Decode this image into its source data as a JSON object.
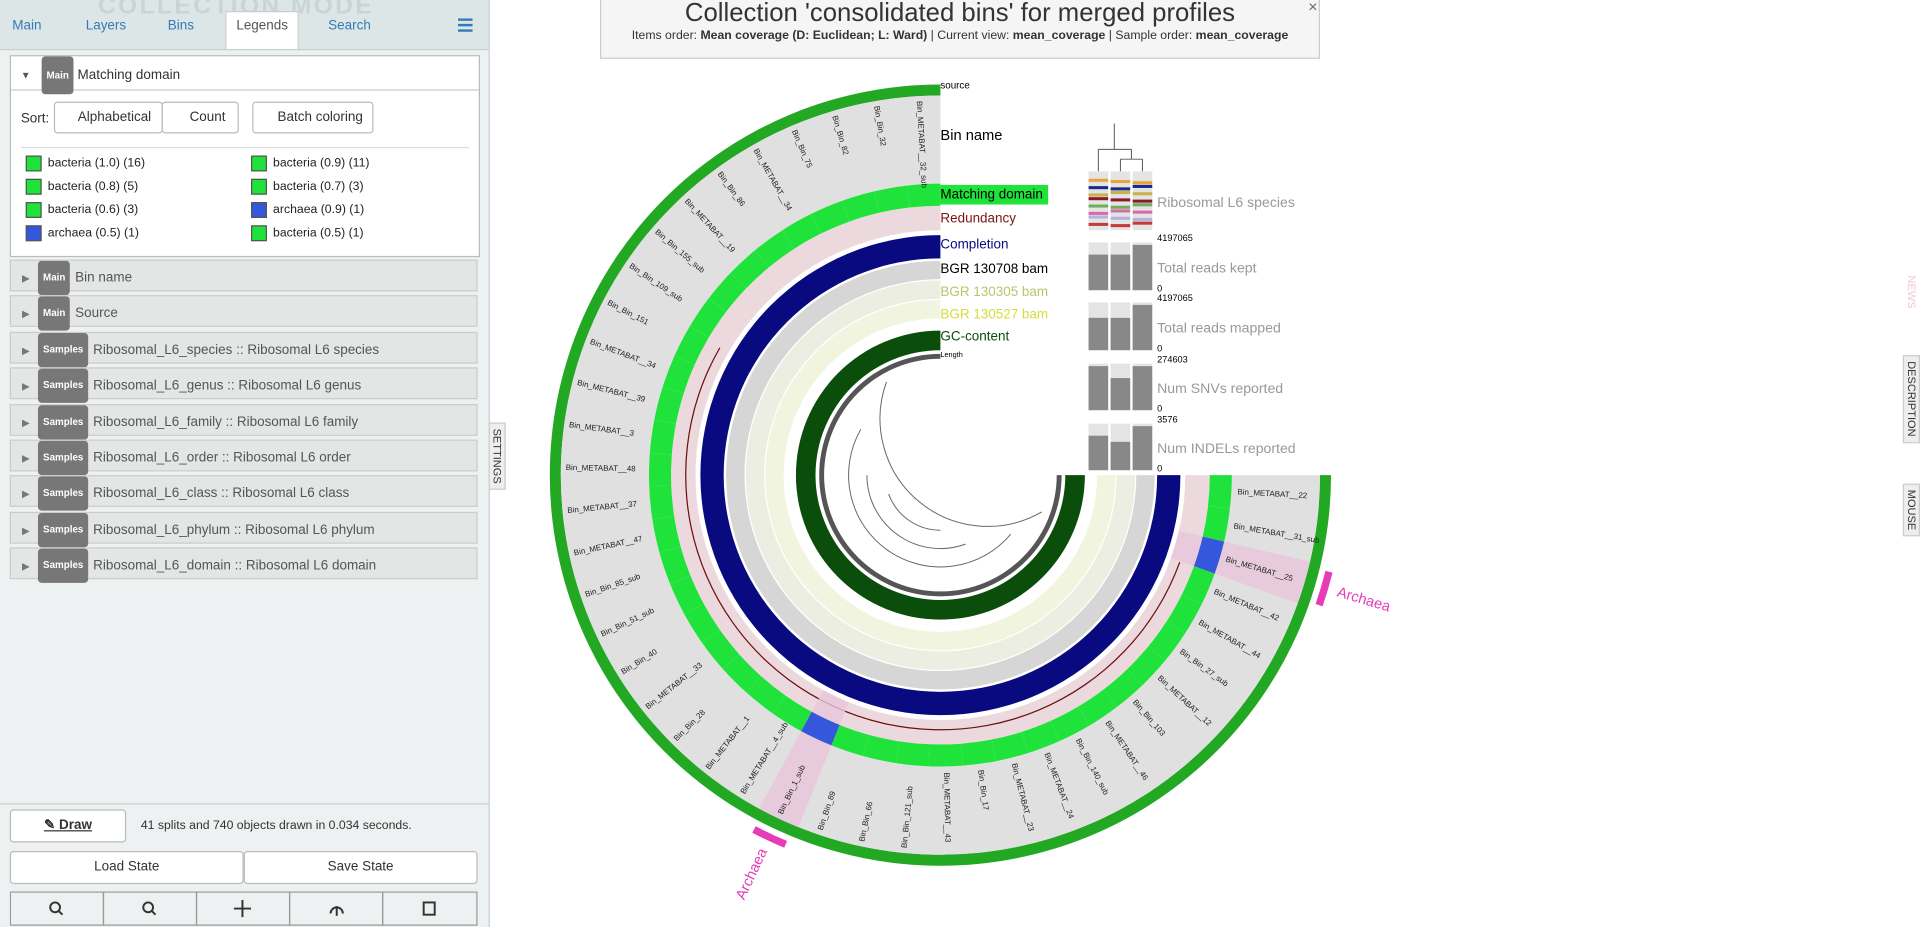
{
  "watermark": "COLLECTION MODE",
  "tabs": [
    "Main",
    "Layers",
    "Bins",
    "Legends",
    "Search"
  ],
  "header": {
    "title": "Collection 'consolidated bins' for merged profiles",
    "subtitle": [
      "Items order: ",
      "Mean coverage (D: Euclidean; L: Ward)",
      " | Current view: ",
      "mean_coverage",
      " | Sample order: ",
      "mean_coverage"
    ],
    "close": "×"
  },
  "legend_panel": {
    "badge": "Main",
    "title": "Matching domain",
    "sort_label": "Sort:",
    "buttons": [
      "Alphabetical",
      "Count",
      "Batch coloring"
    ],
    "items": [
      {
        "label": "bacteria (1.0) (16)",
        "color": "#1fe23a"
      },
      {
        "label": "bacteria (0.9) (11)",
        "color": "#1fe23a"
      },
      {
        "label": "bacteria (0.8) (5)",
        "color": "#1fe23a"
      },
      {
        "label": "bacteria (0.7) (3)",
        "color": "#1fe23a"
      },
      {
        "label": "bacteria (0.6) (3)",
        "color": "#1fe23a"
      },
      {
        "label": "archaea (0.9) (1)",
        "color": "#3557dc"
      },
      {
        "label": "archaea (0.5) (1)",
        "color": "#3557dc"
      },
      {
        "label": "bacteria (0.5) (1)",
        "color": "#1fe23a"
      }
    ]
  },
  "panels": [
    {
      "badge": "Main",
      "title": "Bin name"
    },
    {
      "badge": "Main",
      "title": "Source"
    },
    {
      "badge": "Samples",
      "title": "Ribosomal_L6_species :: Ribosomal L6 species"
    },
    {
      "badge": "Samples",
      "title": "Ribosomal_L6_genus :: Ribosomal L6 genus"
    },
    {
      "badge": "Samples",
      "title": "Ribosomal_L6_family :: Ribosomal L6 family"
    },
    {
      "badge": "Samples",
      "title": "Ribosomal_L6_order :: Ribosomal L6 order"
    },
    {
      "badge": "Samples",
      "title": "Ribosomal_L6_class :: Ribosomal L6 class"
    },
    {
      "badge": "Samples",
      "title": "Ribosomal_L6_phylum :: Ribosomal L6 phylum"
    },
    {
      "badge": "Samples",
      "title": "Ribosomal_L6_domain :: Ribosomal L6 domain"
    }
  ],
  "footer": {
    "draw": "Draw",
    "status": "41 splits and 740 objects drawn in 0.034 seconds.",
    "load": "Load State",
    "save": "Save State"
  },
  "side_tabs": {
    "settings": "SETTINGS",
    "news": "NEWS",
    "description": "DESCRIPTION",
    "mouse": "MOUSE"
  },
  "layers": [
    {
      "name": "source",
      "color": "#000000"
    },
    {
      "name": "Bin name",
      "color": "#000000"
    },
    {
      "name": "Matching domain",
      "color": "#000000"
    },
    {
      "name": "Redundancy",
      "color": "#7a1515"
    },
    {
      "name": "Completion",
      "color": "#0a0a80"
    },
    {
      "name": "BGR 130708 bam",
      "color": "#000000"
    },
    {
      "name": "BGR 130305 bam",
      "color": "#b5c96a"
    },
    {
      "name": "BGR 130527 bam",
      "color": "#d8dc3a"
    },
    {
      "name": "GC-content",
      "color": "#0b4d0b"
    },
    {
      "name": "Length",
      "color": "#000000"
    }
  ],
  "bins": [
    {
      "name": "Bin_METABAT__32_sub",
      "color": "#1fe23a"
    },
    {
      "name": "Bin_Bin_32",
      "color": "#1fe23a"
    },
    {
      "name": "Bin_Bin_82",
      "color": "#1fe23a"
    },
    {
      "name": "Bin_Bin_75",
      "color": "#1fe23a"
    },
    {
      "name": "Bin_METABAT__34",
      "color": "#1fe23a"
    },
    {
      "name": "Bin_Bin_86",
      "color": "#1fe23a"
    },
    {
      "name": "Bin_METABAT__19",
      "color": "#1fe23a"
    },
    {
      "name": "Bin_Bin_155_sub",
      "color": "#1fe23a"
    },
    {
      "name": "Bin_Bin_109_sub",
      "color": "#1fe23a"
    },
    {
      "name": "Bin_Bin_151",
      "color": "#1fe23a"
    },
    {
      "name": "Bin_METABAT__34",
      "color": "#1fe23a"
    },
    {
      "name": "Bin_METABAT__39",
      "color": "#1fe23a"
    },
    {
      "name": "Bin_METABAT__3",
      "color": "#1fe23a"
    },
    {
      "name": "Bin_METABAT__48",
      "color": "#1fe23a"
    },
    {
      "name": "Bin_METABAT__37",
      "color": "#1fe23a"
    },
    {
      "name": "Bin_METABAT__47",
      "color": "#1fe23a"
    },
    {
      "name": "Bin_Bin_85_sub",
      "color": "#1fe23a"
    },
    {
      "name": "Bin_Bin_51_sub",
      "color": "#1fe23a"
    },
    {
      "name": "Bin_Bin_40",
      "color": "#1fe23a"
    },
    {
      "name": "Bin_METABAT__33",
      "color": "#1fe23a"
    },
    {
      "name": "Bin_Bin_28",
      "color": "#1fe23a"
    },
    {
      "name": "Bin_METABAT__1",
      "color": "#1fe23a"
    },
    {
      "name": "Bin_METABAT__4_sub",
      "color": "#1fe23a"
    },
    {
      "name": "Bin_Bin_1_sub",
      "color": "#3557dc"
    },
    {
      "name": "Bin_Bin_89",
      "color": "#1fe23a"
    },
    {
      "name": "Bin_Bin_66",
      "color": "#1fe23a"
    },
    {
      "name": "Bin_Bin_121_sub",
      "color": "#1fe23a"
    },
    {
      "name": "Bin_METABAT__43",
      "color": "#1fe23a"
    },
    {
      "name": "Bin_Bin_17",
      "color": "#1fe23a"
    },
    {
      "name": "Bin_METABAT__23",
      "color": "#1fe23a"
    },
    {
      "name": "Bin_METABAT__24",
      "color": "#1fe23a"
    },
    {
      "name": "Bin_Bin_140_sub",
      "color": "#1fe23a"
    },
    {
      "name": "Bin_METABAT__46",
      "color": "#1fe23a"
    },
    {
      "name": "Bin_Bin_103",
      "color": "#1fe23a"
    },
    {
      "name": "Bin_METABAT__12",
      "color": "#1fe23a"
    },
    {
      "name": "Bin_Bin_27_sub",
      "color": "#1fe23a"
    },
    {
      "name": "Bin_METABAT__44",
      "color": "#1fe23a"
    },
    {
      "name": "Bin_METABAT__42",
      "color": "#1fe23a"
    },
    {
      "name": "Bin_METABAT__25",
      "color": "#3557dc"
    },
    {
      "name": "Bin_METABAT__31_sub",
      "color": "#1fe23a"
    },
    {
      "name": "Bin_METABAT__22",
      "color": "#1fe23a"
    }
  ],
  "annotations": [
    "Archaea",
    "Archaea"
  ],
  "sample_layers": [
    {
      "name": "Ribosomal L6 species"
    },
    {
      "name": "Total reads kept",
      "max": 4197065,
      "min": 0,
      "values": [
        3300000,
        3300000,
        4197065
      ]
    },
    {
      "name": "Total reads mapped",
      "max": 4197065,
      "min": 0,
      "values": [
        3000000,
        3000000,
        4197065
      ]
    },
    {
      "name": "Num SNVs reported",
      "max": 274603,
      "min": 0,
      "values": [
        274603,
        200000,
        274603
      ]
    },
    {
      "name": "Num INDELs reported",
      "max": 3576,
      "min": 0,
      "values": [
        2800,
        2300,
        3576
      ]
    }
  ]
}
